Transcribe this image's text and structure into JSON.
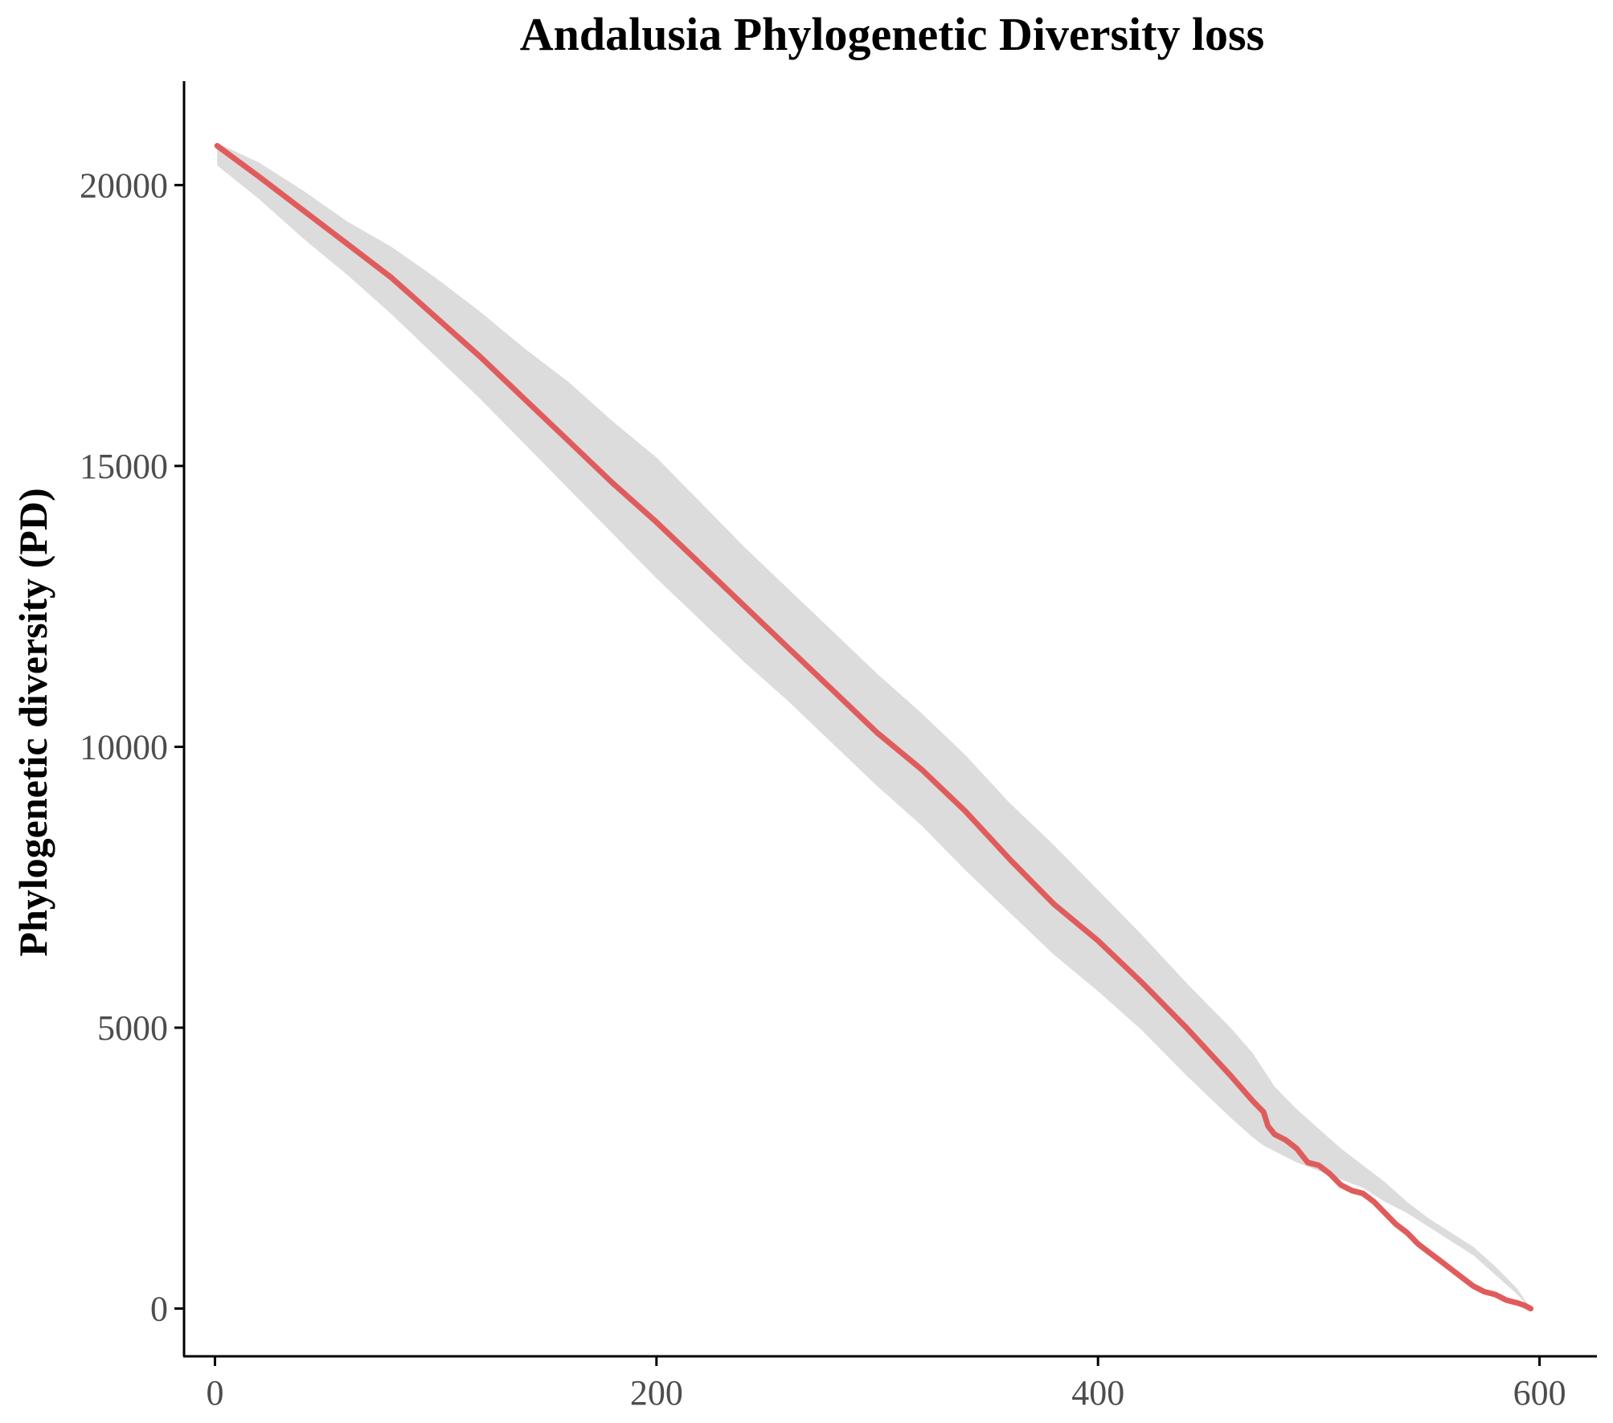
{
  "chart_data": {
    "type": "line",
    "title": "Andalusia Phylogenetic Diversity loss",
    "xlabel": "",
    "ylabel": "Phylogenetic diversity (PD)",
    "xlim": [
      -14,
      626
    ],
    "ylim": [
      -850,
      21850
    ],
    "x_ticks": [
      0,
      200,
      400,
      600
    ],
    "x_tick_labels": [
      "0",
      "200",
      "400",
      "600"
    ],
    "y_ticks": [
      0,
      5000,
      10000,
      15000,
      20000
    ],
    "y_tick_labels": [
      "0",
      "5000",
      "10000",
      "15000",
      "20000"
    ],
    "grid": false,
    "legend": "none",
    "colors": {
      "line": "#e05c5c",
      "ribbon": "#dcdcdd",
      "axis": "#000000",
      "tick_text": "#4d4d4d"
    },
    "series": [
      {
        "role": "mean",
        "x": [
          1,
          20,
          40,
          60,
          80,
          100,
          120,
          140,
          160,
          180,
          200,
          220,
          240,
          260,
          280,
          300,
          320,
          340,
          360,
          380,
          400,
          420,
          440,
          460,
          470,
          475,
          477,
          480,
          485,
          490,
          495,
          500,
          505,
          510,
          515,
          520,
          525,
          530,
          535,
          540,
          545,
          550,
          555,
          560,
          565,
          570,
          575,
          580,
          585,
          590,
          593,
          596
        ],
        "y": [
          20700,
          20150,
          19550,
          18950,
          18350,
          17650,
          16950,
          16200,
          15450,
          14700,
          14000,
          13250,
          12500,
          11750,
          11000,
          10250,
          9600,
          8850,
          8000,
          7200,
          6550,
          5800,
          5000,
          4150,
          3700,
          3500,
          3250,
          3100,
          3000,
          2850,
          2600,
          2550,
          2400,
          2200,
          2100,
          2050,
          1900,
          1700,
          1500,
          1350,
          1150,
          1000,
          850,
          700,
          550,
          400,
          300,
          250,
          150,
          100,
          60,
          0
        ]
      }
    ],
    "ribbon": {
      "x": [
        1,
        20,
        40,
        60,
        80,
        100,
        120,
        140,
        160,
        180,
        200,
        220,
        240,
        260,
        280,
        300,
        320,
        340,
        360,
        380,
        400,
        420,
        440,
        460,
        470,
        475,
        480,
        490,
        500,
        510,
        520,
        530,
        540,
        550,
        560,
        570,
        580,
        590,
        596
      ],
      "upper": [
        20750,
        20400,
        19900,
        19350,
        18900,
        18350,
        17750,
        17100,
        16500,
        15800,
        15150,
        14350,
        13550,
        12800,
        12050,
        11300,
        10600,
        9850,
        9000,
        8250,
        7450,
        6650,
        5800,
        5000,
        4550,
        4250,
        3950,
        3550,
        3200,
        2850,
        2550,
        2250,
        1900,
        1600,
        1350,
        1100,
        750,
        350,
        0
      ],
      "lower": [
        20350,
        19750,
        19050,
        18400,
        17700,
        16950,
        16200,
        15400,
        14600,
        13800,
        13000,
        12250,
        11500,
        10800,
        10050,
        9300,
        8600,
        7800,
        7050,
        6300,
        5650,
        4950,
        4150,
        3400,
        3050,
        2900,
        2800,
        2600,
        2450,
        2300,
        2150,
        1900,
        1700,
        1450,
        1200,
        950,
        600,
        250,
        0
      ]
    }
  }
}
